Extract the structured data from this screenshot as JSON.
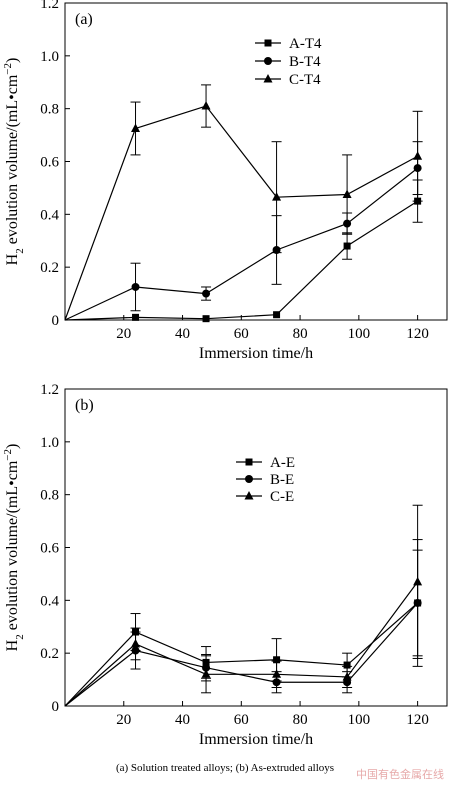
{
  "chart_data": [
    {
      "type": "line",
      "panel_label": "(a)",
      "xlabel": "Immersion time/h",
      "ylabel": "H2 evolution volume/(mL•cm−2)",
      "xlim": [
        0,
        130
      ],
      "ylim": [
        0,
        1.2
      ],
      "xticks": [
        20,
        40,
        60,
        80,
        100,
        120
      ],
      "yticks": [
        0,
        0.2,
        0.4,
        0.6,
        0.8,
        1.0,
        1.2
      ],
      "xtick_labels": [
        "20",
        "40",
        "60",
        "80",
        "100",
        "120"
      ],
      "ytick_labels": [
        "0",
        "0.2",
        "0.4",
        "0.6",
        "0.8",
        "1.0",
        "1.2"
      ],
      "legend_position": "upper-middle",
      "x": [
        0,
        24,
        48,
        72,
        96,
        120
      ],
      "series": [
        {
          "name": "A-T4",
          "marker": "square",
          "values": [
            0,
            0.01,
            0.005,
            0.02,
            0.28,
            0.45
          ],
          "errors": [
            0,
            0,
            0,
            0,
            0.05,
            0.08
          ]
        },
        {
          "name": "B-T4",
          "marker": "circle",
          "values": [
            0,
            0.125,
            0.1,
            0.265,
            0.365,
            0.575
          ],
          "errors": [
            0,
            0.09,
            0.025,
            0.13,
            0.04,
            0.1
          ]
        },
        {
          "name": "C-T4",
          "marker": "triangle",
          "values": [
            0,
            0.725,
            0.81,
            0.465,
            0.475,
            0.62
          ],
          "errors": [
            0,
            0.1,
            0.08,
            0.21,
            0.15,
            0.17
          ]
        }
      ]
    },
    {
      "type": "line",
      "panel_label": "(b)",
      "xlabel": "Immersion time/h",
      "ylabel": "H2 evolution volume/(mL•cm−2)",
      "xlim": [
        0,
        130
      ],
      "ylim": [
        0,
        1.2
      ],
      "xticks": [
        20,
        40,
        60,
        80,
        100,
        120
      ],
      "yticks": [
        0,
        0.2,
        0.4,
        0.6,
        0.8,
        1.0,
        1.2
      ],
      "xtick_labels": [
        "20",
        "40",
        "60",
        "80",
        "100",
        "120"
      ],
      "ytick_labels": [
        "0",
        "0.2",
        "0.4",
        "0.6",
        "0.8",
        "1.0",
        "1.2"
      ],
      "legend_position": "upper-middle",
      "x": [
        0,
        24,
        48,
        72,
        96,
        120
      ],
      "series": [
        {
          "name": "A-E",
          "marker": "square",
          "values": [
            0,
            0.28,
            0.165,
            0.175,
            0.155,
            0.39
          ],
          "errors": [
            0,
            0.07,
            0.06,
            0.08,
            0.045,
            0.24
          ]
        },
        {
          "name": "B-E",
          "marker": "circle",
          "values": [
            0,
            0.21,
            0.145,
            0.09,
            0.09,
            0.39
          ],
          "errors": [
            0,
            0.07,
            0.05,
            0.04,
            0.04,
            0.2
          ]
        },
        {
          "name": "C-E",
          "marker": "triangle",
          "values": [
            0,
            0.235,
            0.12,
            0.12,
            0.11,
            0.47
          ],
          "errors": [
            0,
            0.06,
            0.07,
            0.05,
            0.04,
            0.29
          ]
        }
      ]
    }
  ],
  "caption": "(a)  Solution  treated  alloys;  (b) As-extruded alloys",
  "watermark": "中国有色金属在线"
}
